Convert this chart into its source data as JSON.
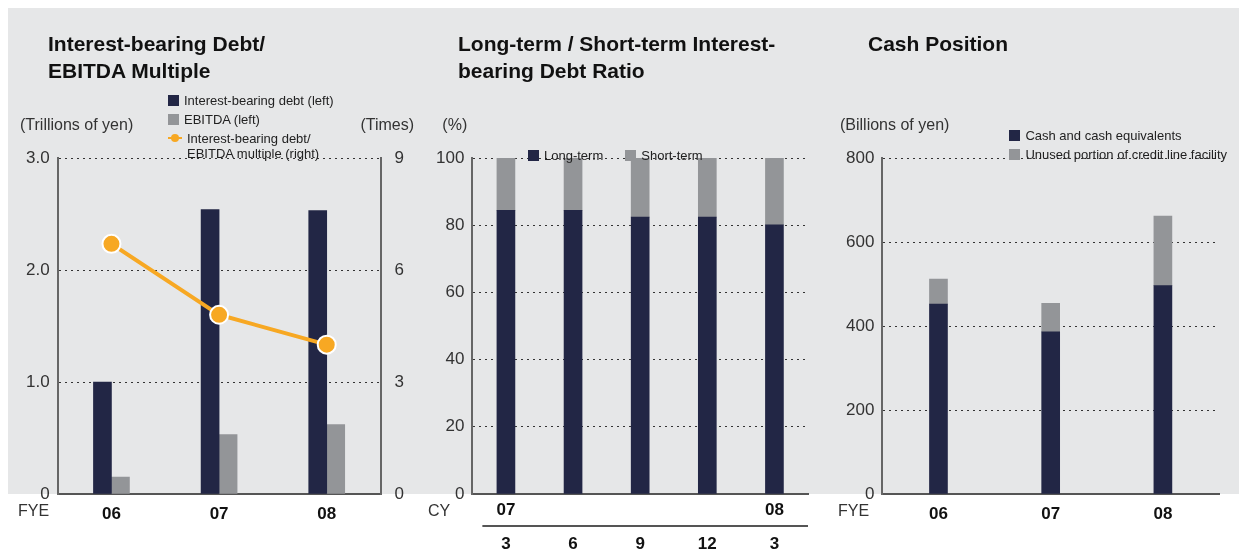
{
  "chart_data": [
    {
      "type": "bar",
      "title": "Interest-bearing Debt/ EBITDA Multiple",
      "xlabel": "FYE",
      "ylabel": "(Trillions of yen)",
      "y2label": "(Times)",
      "categories": [
        "06",
        "07",
        "08"
      ],
      "series": [
        {
          "name": "Interest-bearing debt (left)",
          "color": "#222645",
          "values": [
            1.0,
            2.54,
            2.53
          ]
        },
        {
          "name": "EBITDA (left)",
          "color": "#939598",
          "values": [
            0.15,
            0.53,
            0.62
          ]
        },
        {
          "name": "Interest-bearing debt/ EBITDA multiple (right)",
          "type": "line",
          "axis": "y2",
          "color": "#f7a823",
          "values": [
            6.7,
            4.8,
            4.0
          ]
        }
      ],
      "ylim": [
        0,
        3
      ],
      "yticks": [
        {
          "value": 0,
          "label": "0"
        },
        {
          "value": 1,
          "label": "1.0"
        },
        {
          "value": 2,
          "label": "2.0"
        },
        {
          "value": 3,
          "label": "3.0"
        }
      ],
      "y2lim": [
        0,
        9
      ],
      "y2ticks": [
        0,
        3,
        6,
        9
      ],
      "grid": "y",
      "legend": "top",
      "marker": "circle"
    },
    {
      "type": "bar",
      "title": "Long-term / Short-term Interest-bearing Debt Ratio",
      "xlabel": "CY",
      "ylabel": "(%)",
      "categories": [
        "3",
        "6",
        "9",
        "12",
        "3"
      ],
      "annotations": [
        "07",
        "08"
      ],
      "stacked": true,
      "series": [
        {
          "name": "Long-term",
          "color": "#222645",
          "values": [
            84.4,
            84.4,
            82.4,
            82.4,
            80.1
          ]
        },
        {
          "name": "Short-term",
          "color": "#939598",
          "values": [
            15.6,
            15.6,
            17.6,
            17.6,
            19.9
          ]
        }
      ],
      "ylim": [
        0,
        100
      ],
      "yticks": [
        0,
        20,
        40,
        60,
        80,
        100
      ],
      "grid": "y",
      "legend": "top"
    },
    {
      "type": "bar",
      "title": "Cash Position",
      "xlabel": "FYE",
      "ylabel": "(Billions of yen)",
      "categories": [
        "06",
        "07",
        "08"
      ],
      "stacked": true,
      "series": [
        {
          "name": "Cash and cash equivalents",
          "color": "#222645",
          "values": [
            452,
            386,
            496
          ]
        },
        {
          "name": "Unused portion of credit line facility",
          "color": "#939598",
          "values": [
            60,
            68,
            166
          ]
        }
      ],
      "ylim": [
        0,
        800
      ],
      "yticks": [
        0,
        200,
        400,
        600,
        800
      ],
      "grid": "y",
      "legend": "top right"
    }
  ]
}
